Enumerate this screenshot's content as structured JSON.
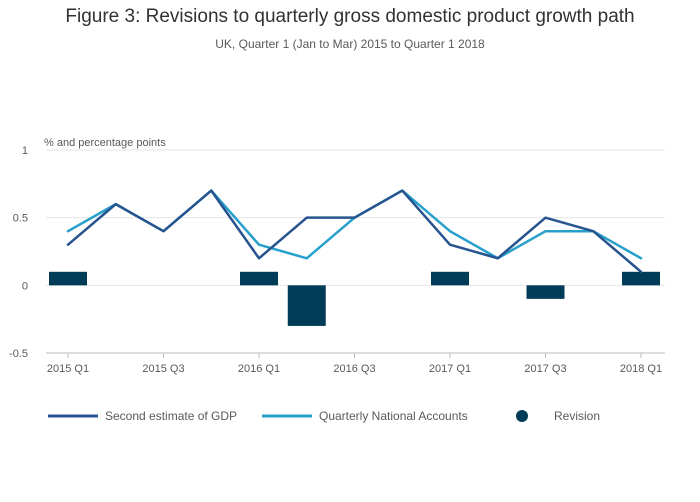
{
  "title": "Figure 3: Revisions to quarterly gross domestic product growth path",
  "subtitle": "UK, Quarter 1 (Jan to Mar) 2015 to Quarter 1 2018",
  "chart_data": {
    "type": "line",
    "title": "Figure 3: Revisions to quarterly gross domestic product growth path",
    "subtitle": "UK, Quarter 1 (Jan to Mar) 2015 to Quarter 1 2018",
    "ylabel": "% and percentage points",
    "xlabel": "",
    "ylim": [
      -0.5,
      1
    ],
    "yticks": [
      {
        "value": -0.5,
        "label": "-0.5"
      },
      {
        "value": 0,
        "label": "0"
      },
      {
        "value": 0.5,
        "label": "0.5"
      },
      {
        "value": 1,
        "label": "1"
      }
    ],
    "categories": [
      "2015 Q1",
      "2015 Q2",
      "2015 Q3",
      "2015 Q4",
      "2016 Q1",
      "2016 Q2",
      "2016 Q3",
      "2016 Q4",
      "2017 Q1",
      "2017 Q2",
      "2017 Q3",
      "2017 Q4",
      "2018 Q1"
    ],
    "xtick_labels": [
      "2015 Q1",
      "",
      "2015 Q3",
      "",
      "2016 Q1",
      "",
      "2016 Q3",
      "",
      "2017 Q1",
      "",
      "2017 Q3",
      "",
      "2018 Q1"
    ],
    "grid": true,
    "legend_position": "bottom",
    "series": [
      {
        "name": "Second estimate of GDP",
        "type": "line",
        "color": "#27548e",
        "values": [
          0.3,
          0.6,
          0.4,
          0.7,
          0.2,
          0.5,
          0.5,
          0.7,
          0.3,
          0.2,
          0.5,
          0.4,
          0.1
        ]
      },
      {
        "name": "Quarterly National Accounts",
        "type": "line",
        "color": "#27a0cc",
        "values": [
          0.4,
          0.6,
          0.4,
          0.7,
          0.3,
          0.2,
          0.5,
          0.7,
          0.4,
          0.2,
          0.4,
          0.4,
          0.2
        ]
      },
      {
        "name": "Revision",
        "type": "bar",
        "color": "#003c57",
        "values": [
          0.1,
          0,
          0,
          0,
          0.1,
          -0.3,
          0,
          0,
          0.1,
          0,
          -0.1,
          0,
          0.1
        ]
      }
    ]
  }
}
